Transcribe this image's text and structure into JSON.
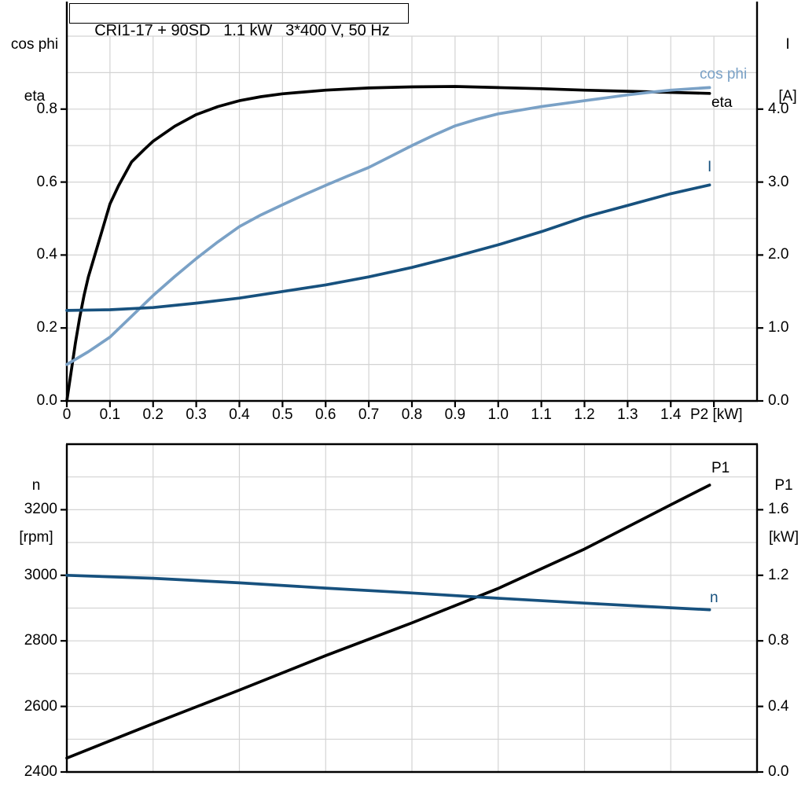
{
  "colors": {
    "eta_curve": "#000000",
    "cos_phi_curve": "#7aa1c6",
    "current_curve": "#17517e",
    "speed_curve": "#17517e",
    "p1_curve": "#000000",
    "grid": "#d3d3d3",
    "axis": "#000000",
    "background": "#ffffff"
  },
  "chart_data": [
    {
      "type": "line",
      "title": "CRI1-17 + 90SD   1.1 kW   3*400 V, 50 Hz",
      "x_axis": {
        "label": "P2 [kW]",
        "range": [
          0,
          1.6
        ],
        "grid_step": 0.1,
        "tick_values": [
          0,
          0.1,
          0.2,
          0.3,
          0.4,
          0.5,
          0.6,
          0.7,
          0.8,
          0.9,
          1.0,
          1.1,
          1.2,
          1.3,
          1.4
        ],
        "tick_labels": [
          "0",
          "0.1",
          "0.2",
          "0.3",
          "0.4",
          "0.5",
          "0.6",
          "0.7",
          "0.8",
          "0.9",
          "1.0",
          "1.1",
          "1.2",
          "1.3",
          "1.4"
        ]
      },
      "left_axis": {
        "title_lines": [
          "cos phi",
          "eta"
        ],
        "range": [
          0,
          1.0
        ],
        "grid_step": 0.1,
        "tick_values": [
          0,
          0.2,
          0.4,
          0.6,
          0.8
        ],
        "tick_labels": [
          "0.0",
          "0.2",
          "0.4",
          "0.6",
          "0.8"
        ]
      },
      "right_axis": {
        "title_lines": [
          "I",
          "[A]"
        ],
        "range": [
          0,
          5.0
        ],
        "tick_values": [
          0,
          1,
          2,
          3,
          4
        ],
        "tick_labels": [
          "0.0",
          "1.0",
          "2.0",
          "3.0",
          "4.0"
        ]
      },
      "legend_position": "curve-end-labels",
      "grid": true,
      "series": [
        {
          "name": "eta",
          "label": "eta",
          "axis": "left",
          "color": "#000000",
          "x": [
            0,
            0.01,
            0.02,
            0.03,
            0.04,
            0.05,
            0.06,
            0.08,
            0.1,
            0.12,
            0.15,
            0.18,
            0.2,
            0.25,
            0.3,
            0.35,
            0.4,
            0.45,
            0.5,
            0.6,
            0.7,
            0.8,
            0.9,
            1.0,
            1.1,
            1.2,
            1.3,
            1.4,
            1.49
          ],
          "y": [
            0,
            0.08,
            0.16,
            0.23,
            0.29,
            0.34,
            0.38,
            0.46,
            0.54,
            0.59,
            0.655,
            0.69,
            0.712,
            0.753,
            0.785,
            0.807,
            0.823,
            0.834,
            0.842,
            0.852,
            0.858,
            0.861,
            0.862,
            0.859,
            0.856,
            0.852,
            0.849,
            0.846,
            0.843
          ]
        },
        {
          "name": "cos phi",
          "label": "cos phi",
          "axis": "left",
          "color": "#7aa1c6",
          "x": [
            0,
            0.05,
            0.1,
            0.15,
            0.2,
            0.25,
            0.3,
            0.35,
            0.4,
            0.45,
            0.5,
            0.55,
            0.6,
            0.65,
            0.7,
            0.75,
            0.8,
            0.85,
            0.9,
            0.95,
            1.0,
            1.05,
            1.1,
            1.15,
            1.2,
            1.25,
            1.3,
            1.35,
            1.4,
            1.45,
            1.49
          ],
          "y": [
            0.1,
            0.135,
            0.175,
            0.232,
            0.289,
            0.341,
            0.39,
            0.436,
            0.478,
            0.51,
            0.538,
            0.565,
            0.591,
            0.616,
            0.64,
            0.67,
            0.7,
            0.728,
            0.754,
            0.772,
            0.787,
            0.797,
            0.807,
            0.815,
            0.823,
            0.831,
            0.839,
            0.846,
            0.852,
            0.856,
            0.859
          ]
        },
        {
          "name": "I",
          "label": "I",
          "axis": "right",
          "color": "#17517e",
          "x": [
            0,
            0.1,
            0.2,
            0.3,
            0.4,
            0.5,
            0.6,
            0.7,
            0.8,
            0.9,
            1.0,
            1.1,
            1.2,
            1.3,
            1.4,
            1.49
          ],
          "y": [
            1.24,
            1.25,
            1.28,
            1.34,
            1.41,
            1.5,
            1.59,
            1.7,
            1.83,
            1.98,
            2.14,
            2.32,
            2.52,
            2.68,
            2.84,
            2.96
          ]
        }
      ]
    },
    {
      "type": "line",
      "title": "",
      "x_axis": {
        "label": "",
        "range": [
          0,
          1.6
        ],
        "grid_step": 0.2,
        "tick_values": [],
        "tick_labels": []
      },
      "left_axis": {
        "title_lines": [
          "n",
          "[rpm]"
        ],
        "range": [
          2400,
          3400
        ],
        "grid_step": 100,
        "tick_values": [
          2400,
          2600,
          2800,
          3000,
          3200
        ],
        "tick_labels": [
          "2400",
          "2600",
          "2800",
          "3000",
          "3200"
        ]
      },
      "right_axis": {
        "title_lines": [
          "P1",
          "[kW]"
        ],
        "range": [
          0,
          2.0
        ],
        "tick_values": [
          0,
          0.4,
          0.8,
          1.2,
          1.6
        ],
        "tick_labels": [
          "0.0",
          "0.4",
          "0.8",
          "1.2",
          "1.6"
        ]
      },
      "legend_position": "curve-end-labels",
      "grid": true,
      "series": [
        {
          "name": "P1",
          "label": "P1",
          "axis": "right",
          "color": "#000000",
          "x": [
            0,
            0.2,
            0.4,
            0.6,
            0.8,
            1.0,
            1.2,
            1.4,
            1.49
          ],
          "y": [
            0.085,
            0.295,
            0.5,
            0.71,
            0.91,
            1.12,
            1.36,
            1.63,
            1.75
          ]
        },
        {
          "name": "n",
          "label": "n",
          "axis": "left",
          "color": "#17517e",
          "x": [
            0,
            0.2,
            0.4,
            0.6,
            0.8,
            1.0,
            1.2,
            1.4,
            1.49
          ],
          "y": [
            3000,
            2991,
            2977,
            2961,
            2946,
            2930,
            2915,
            2901,
            2895
          ]
        }
      ]
    }
  ]
}
